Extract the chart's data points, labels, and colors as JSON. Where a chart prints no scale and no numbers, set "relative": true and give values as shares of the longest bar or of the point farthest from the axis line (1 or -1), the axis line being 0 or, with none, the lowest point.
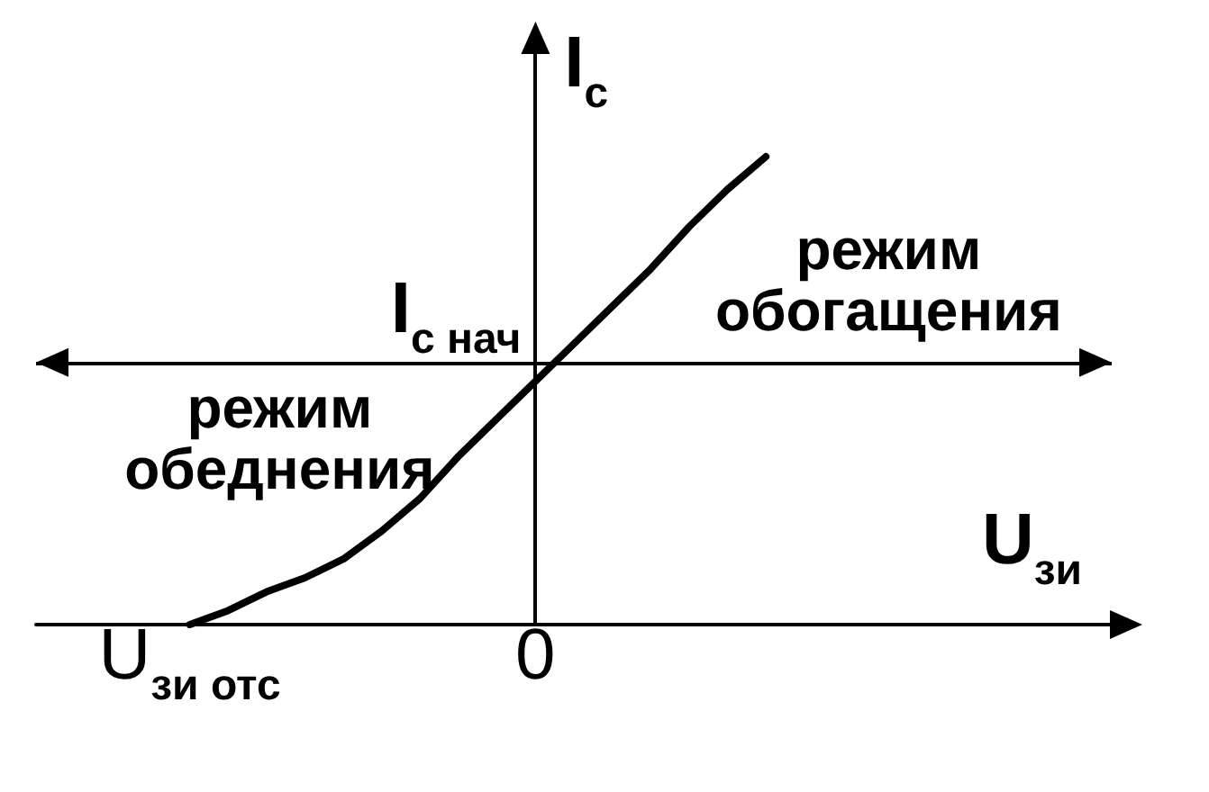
{
  "chart_data": {
    "type": "line",
    "xlabel": "U$_{зи}$",
    "ylabel": "I$_{с}$",
    "relative": true,
    "categories": [
      null,
      null,
      null,
      null,
      "U$_{зи отс}$",
      null,
      null,
      null,
      null,
      null,
      null,
      null,
      null,
      "0",
      null,
      null,
      null,
      null,
      null,
      null,
      null,
      null,
      null,
      null,
      null,
      null,
      null,
      null,
      null
    ],
    "values": [
      null,
      null,
      null,
      null,
      0,
      0.03,
      0.07,
      0.1,
      0.14,
      0.2,
      0.27,
      0.36,
      0.44,
      0.52,
      0.6,
      0.68,
      0.76,
      0.85,
      0.93,
      1,
      null,
      null,
      null,
      null,
      null,
      null,
      null,
      null,
      null
    ],
    "color": "#000000",
    "ref_lines": [
      {
        "axis": "y",
        "value": 0.56,
        "label": "I$_{с нач}$",
        "color": "#000000"
      }
    ],
    "annotations": [
      "режим обогащения",
      "режим обеднения"
    ]
  }
}
